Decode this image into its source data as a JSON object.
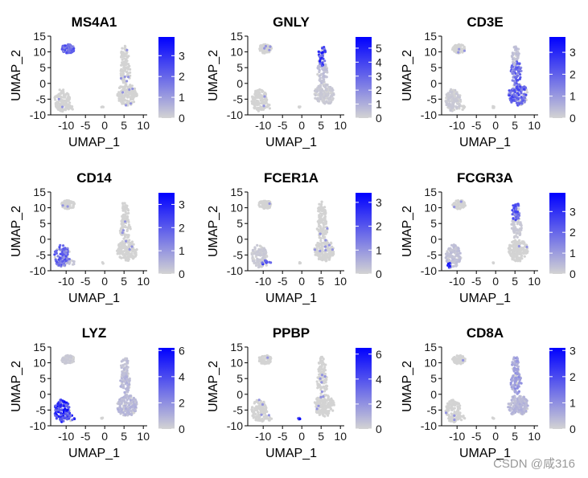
{
  "watermark": "CSDN @咸316",
  "colors": {
    "low": "#d3d3d3",
    "high": "#0000ff",
    "axis": "#000000"
  },
  "chart_data": [
    {
      "type": "scatter",
      "title": "MS4A1",
      "xlabel": "UMAP_1",
      "ylabel": "UMAP_2",
      "xlim": [
        -14,
        11
      ],
      "ylim": [
        -10,
        15
      ],
      "xticks": [
        -10,
        -5,
        0,
        5,
        10
      ],
      "yticks": [
        -10,
        -5,
        0,
        5,
        10,
        15
      ],
      "colorbar": {
        "max": 3.9,
        "ticks": [
          0,
          1,
          2,
          3
        ]
      },
      "clusters": [
        {
          "name": "b_cells",
          "cx": -9.5,
          "cy": 11.0,
          "rx": 1.7,
          "ry": 1.4,
          "n": 80,
          "level": 0.6
        },
        {
          "name": "mono",
          "cx": -11.0,
          "cy": -5.3,
          "rx": 2.0,
          "ry": 3.6,
          "n": 130,
          "level": 0.0
        },
        {
          "name": "t_main",
          "cx": 5.8,
          "cy": -3.6,
          "rx": 2.6,
          "ry": 3.4,
          "n": 160,
          "level": 0.0
        },
        {
          "name": "t_upper",
          "cx": 5.3,
          "cy": 3.6,
          "rx": 1.4,
          "ry": 3.6,
          "n": 70,
          "level": 0.0
        },
        {
          "name": "nk",
          "cx": 5.2,
          "cy": 8.8,
          "rx": 1.0,
          "ry": 3.2,
          "n": 45,
          "level": 0.0
        },
        {
          "name": "platelet",
          "cx": -0.6,
          "cy": -7.5,
          "rx": 0.3,
          "ry": 0.3,
          "n": 4,
          "level": 0.0
        },
        {
          "name": "dc",
          "cx": -9.0,
          "cy": -7.5,
          "rx": 1.3,
          "ry": 1.0,
          "n": 12,
          "level": 0.0
        }
      ]
    },
    {
      "type": "scatter",
      "title": "GNLY",
      "xlabel": "UMAP_1",
      "ylabel": "UMAP_2",
      "xlim": [
        -14,
        11
      ],
      "ylim": [
        -10,
        15
      ],
      "xticks": [
        -10,
        -5,
        0,
        5,
        10
      ],
      "yticks": [
        -10,
        -5,
        0,
        5,
        10,
        15
      ],
      "colorbar": {
        "max": 5.8,
        "ticks": [
          0,
          1,
          2,
          3,
          4,
          5
        ]
      },
      "clusters": [
        {
          "name": "b_cells",
          "cx": -9.5,
          "cy": 11.0,
          "rx": 1.7,
          "ry": 1.4,
          "n": 80,
          "level": 0.0
        },
        {
          "name": "mono",
          "cx": -11.0,
          "cy": -5.3,
          "rx": 2.0,
          "ry": 3.6,
          "n": 130,
          "level": 0.0
        },
        {
          "name": "t_main",
          "cx": 5.8,
          "cy": -3.6,
          "rx": 2.6,
          "ry": 3.4,
          "n": 160,
          "level": 0.05
        },
        {
          "name": "t_upper",
          "cx": 5.3,
          "cy": 3.6,
          "rx": 1.4,
          "ry": 3.6,
          "n": 70,
          "level": 0.1
        },
        {
          "name": "nk",
          "cx": 5.2,
          "cy": 8.8,
          "rx": 1.0,
          "ry": 3.2,
          "n": 45,
          "level": 0.75
        },
        {
          "name": "platelet",
          "cx": -0.6,
          "cy": -7.5,
          "rx": 0.3,
          "ry": 0.3,
          "n": 4,
          "level": 0.0
        },
        {
          "name": "dc",
          "cx": -9.0,
          "cy": -7.5,
          "rx": 1.3,
          "ry": 1.0,
          "n": 12,
          "level": 0.0
        }
      ]
    },
    {
      "type": "scatter",
      "title": "CD3E",
      "xlabel": "UMAP_1",
      "ylabel": "UMAP_2",
      "xlim": [
        -14,
        11
      ],
      "ylim": [
        -10,
        15
      ],
      "xticks": [
        -10,
        -5,
        0,
        5,
        10
      ],
      "yticks": [
        -10,
        -5,
        0,
        5,
        10,
        15
      ],
      "colorbar": {
        "max": 3.7,
        "ticks": [
          0,
          1,
          2,
          3
        ]
      },
      "clusters": [
        {
          "name": "b_cells",
          "cx": -9.5,
          "cy": 11.0,
          "rx": 1.7,
          "ry": 1.4,
          "n": 80,
          "level": 0.0
        },
        {
          "name": "mono",
          "cx": -11.0,
          "cy": -5.3,
          "rx": 2.0,
          "ry": 3.6,
          "n": 130,
          "level": 0.05
        },
        {
          "name": "t_main",
          "cx": 5.8,
          "cy": -3.6,
          "rx": 2.6,
          "ry": 3.4,
          "n": 160,
          "level": 0.6
        },
        {
          "name": "t_upper",
          "cx": 5.3,
          "cy": 3.6,
          "rx": 1.4,
          "ry": 3.6,
          "n": 70,
          "level": 0.55
        },
        {
          "name": "nk",
          "cx": 5.2,
          "cy": 8.8,
          "rx": 1.0,
          "ry": 3.2,
          "n": 45,
          "level": 0.1
        },
        {
          "name": "platelet",
          "cx": -0.6,
          "cy": -7.5,
          "rx": 0.3,
          "ry": 0.3,
          "n": 4,
          "level": 0.0
        },
        {
          "name": "dc",
          "cx": -9.0,
          "cy": -7.5,
          "rx": 1.3,
          "ry": 1.0,
          "n": 12,
          "level": 0.0
        }
      ]
    },
    {
      "type": "scatter",
      "title": "CD14",
      "xlabel": "UMAP_1",
      "ylabel": "UMAP_2",
      "xlim": [
        -14,
        11
      ],
      "ylim": [
        -10,
        15
      ],
      "xticks": [
        -10,
        -5,
        0,
        5,
        10
      ],
      "yticks": [
        -10,
        -5,
        0,
        5,
        10,
        15
      ],
      "colorbar": {
        "max": 3.5,
        "ticks": [
          0,
          1,
          2,
          3
        ]
      },
      "clusters": [
        {
          "name": "b_cells",
          "cx": -9.5,
          "cy": 11.0,
          "rx": 1.7,
          "ry": 1.4,
          "n": 80,
          "level": 0.0
        },
        {
          "name": "mono",
          "cx": -11.0,
          "cy": -5.3,
          "rx": 2.0,
          "ry": 3.6,
          "n": 130,
          "level": 0.55
        },
        {
          "name": "t_main",
          "cx": 5.8,
          "cy": -3.6,
          "rx": 2.6,
          "ry": 3.4,
          "n": 160,
          "level": 0.0
        },
        {
          "name": "t_upper",
          "cx": 5.3,
          "cy": 3.6,
          "rx": 1.4,
          "ry": 3.6,
          "n": 70,
          "level": 0.0
        },
        {
          "name": "nk",
          "cx": 5.2,
          "cy": 8.8,
          "rx": 1.0,
          "ry": 3.2,
          "n": 45,
          "level": 0.0
        },
        {
          "name": "platelet",
          "cx": -0.6,
          "cy": -7.5,
          "rx": 0.3,
          "ry": 0.3,
          "n": 4,
          "level": 0.0
        },
        {
          "name": "dc",
          "cx": -9.0,
          "cy": -7.5,
          "rx": 1.3,
          "ry": 1.0,
          "n": 12,
          "level": 0.1
        }
      ]
    },
    {
      "type": "scatter",
      "title": "FCER1A",
      "xlabel": "UMAP_1",
      "ylabel": "UMAP_2",
      "xlim": [
        -14,
        11
      ],
      "ylim": [
        -10,
        15
      ],
      "xticks": [
        -10,
        -5,
        0,
        5,
        10
      ],
      "yticks": [
        -10,
        -5,
        0,
        5,
        10,
        15
      ],
      "colorbar": {
        "max": 3.4,
        "ticks": [
          0,
          1,
          2,
          3
        ]
      },
      "clusters": [
        {
          "name": "b_cells",
          "cx": -9.5,
          "cy": 11.0,
          "rx": 1.7,
          "ry": 1.4,
          "n": 80,
          "level": 0.0
        },
        {
          "name": "mono",
          "cx": -11.0,
          "cy": -5.3,
          "rx": 2.0,
          "ry": 3.6,
          "n": 130,
          "level": 0.05
        },
        {
          "name": "t_main",
          "cx": 5.8,
          "cy": -3.6,
          "rx": 2.6,
          "ry": 3.4,
          "n": 160,
          "level": 0.0
        },
        {
          "name": "t_upper",
          "cx": 5.3,
          "cy": 3.6,
          "rx": 1.4,
          "ry": 3.6,
          "n": 70,
          "level": 0.0
        },
        {
          "name": "nk",
          "cx": 5.2,
          "cy": 8.8,
          "rx": 1.0,
          "ry": 3.2,
          "n": 45,
          "level": 0.0
        },
        {
          "name": "platelet",
          "cx": -0.6,
          "cy": -7.5,
          "rx": 0.3,
          "ry": 0.3,
          "n": 4,
          "level": 0.0
        },
        {
          "name": "dc",
          "cx": -9.0,
          "cy": -7.5,
          "rx": 1.3,
          "ry": 1.0,
          "n": 12,
          "level": 0.75
        }
      ]
    },
    {
      "type": "scatter",
      "title": "FCGR3A",
      "xlabel": "UMAP_1",
      "ylabel": "UMAP_2",
      "xlim": [
        -14,
        11
      ],
      "ylim": [
        -10,
        15
      ],
      "xticks": [
        -10,
        -5,
        0,
        5,
        10
      ],
      "yticks": [
        -10,
        -5,
        0,
        5,
        10,
        15
      ],
      "colorbar": {
        "max": 3.9,
        "ticks": [
          0,
          1,
          2,
          3
        ]
      },
      "clusters": [
        {
          "name": "b_cells",
          "cx": -9.5,
          "cy": 11.0,
          "rx": 1.7,
          "ry": 1.4,
          "n": 80,
          "level": 0.0
        },
        {
          "name": "mono",
          "cx": -11.0,
          "cy": -5.3,
          "rx": 2.0,
          "ry": 3.6,
          "n": 130,
          "level": 0.1
        },
        {
          "name": "t_main",
          "cx": 5.8,
          "cy": -3.6,
          "rx": 2.6,
          "ry": 3.4,
          "n": 160,
          "level": 0.0
        },
        {
          "name": "t_upper",
          "cx": 5.3,
          "cy": 3.6,
          "rx": 1.4,
          "ry": 3.6,
          "n": 70,
          "level": 0.05
        },
        {
          "name": "nk",
          "cx": 5.2,
          "cy": 8.8,
          "rx": 1.0,
          "ry": 3.2,
          "n": 45,
          "level": 0.6
        },
        {
          "name": "platelet",
          "cx": -0.6,
          "cy": -7.5,
          "rx": 0.3,
          "ry": 0.3,
          "n": 4,
          "level": 0.0
        },
        {
          "name": "dc",
          "cx": -12.0,
          "cy": -8.3,
          "rx": 0.6,
          "ry": 0.8,
          "n": 14,
          "level": 0.8
        }
      ]
    },
    {
      "type": "scatter",
      "title": "LYZ",
      "xlabel": "UMAP_1",
      "ylabel": "UMAP_2",
      "xlim": [
        -14,
        11
      ],
      "ylim": [
        -10,
        15
      ],
      "xticks": [
        -10,
        -5,
        0,
        5,
        10
      ],
      "yticks": [
        -10,
        -5,
        0,
        5,
        10,
        15
      ],
      "colorbar": {
        "max": 6.2,
        "ticks": [
          0,
          2,
          4,
          6
        ]
      },
      "clusters": [
        {
          "name": "b_cells",
          "cx": -9.5,
          "cy": 11.0,
          "rx": 1.7,
          "ry": 1.4,
          "n": 80,
          "level": 0.05
        },
        {
          "name": "mono",
          "cx": -11.0,
          "cy": -5.3,
          "rx": 2.0,
          "ry": 3.6,
          "n": 130,
          "level": 0.85
        },
        {
          "name": "t_main",
          "cx": 5.8,
          "cy": -3.6,
          "rx": 2.6,
          "ry": 3.4,
          "n": 160,
          "level": 0.15
        },
        {
          "name": "t_upper",
          "cx": 5.3,
          "cy": 3.6,
          "rx": 1.4,
          "ry": 3.6,
          "n": 70,
          "level": 0.15
        },
        {
          "name": "nk",
          "cx": 5.2,
          "cy": 8.8,
          "rx": 1.0,
          "ry": 3.2,
          "n": 45,
          "level": 0.1
        },
        {
          "name": "platelet",
          "cx": -0.6,
          "cy": -7.5,
          "rx": 0.3,
          "ry": 0.3,
          "n": 4,
          "level": 0.0
        },
        {
          "name": "dc",
          "cx": -9.0,
          "cy": -7.5,
          "rx": 1.3,
          "ry": 1.0,
          "n": 12,
          "level": 0.85
        }
      ]
    },
    {
      "type": "scatter",
      "title": "PPBP",
      "xlabel": "UMAP_1",
      "ylabel": "UMAP_2",
      "xlim": [
        -14,
        11
      ],
      "ylim": [
        -10,
        15
      ],
      "xticks": [
        -10,
        -5,
        0,
        5,
        10
      ],
      "yticks": [
        -10,
        -5,
        0,
        5,
        10,
        15
      ],
      "colorbar": {
        "max": 6.5,
        "ticks": [
          0,
          2,
          4,
          6
        ]
      },
      "clusters": [
        {
          "name": "b_cells",
          "cx": -9.5,
          "cy": 11.0,
          "rx": 1.7,
          "ry": 1.4,
          "n": 80,
          "level": 0.0
        },
        {
          "name": "mono",
          "cx": -11.0,
          "cy": -5.3,
          "rx": 2.0,
          "ry": 3.6,
          "n": 130,
          "level": 0.0
        },
        {
          "name": "t_main",
          "cx": 5.8,
          "cy": -3.6,
          "rx": 2.6,
          "ry": 3.4,
          "n": 160,
          "level": 0.0
        },
        {
          "name": "t_upper",
          "cx": 5.3,
          "cy": 3.6,
          "rx": 1.4,
          "ry": 3.6,
          "n": 70,
          "level": 0.0
        },
        {
          "name": "nk",
          "cx": 5.2,
          "cy": 8.8,
          "rx": 1.0,
          "ry": 3.2,
          "n": 45,
          "level": 0.0
        },
        {
          "name": "platelet",
          "cx": -0.6,
          "cy": -7.8,
          "rx": 0.4,
          "ry": 0.3,
          "n": 6,
          "level": 0.9
        },
        {
          "name": "dc",
          "cx": -9.0,
          "cy": -7.5,
          "rx": 1.3,
          "ry": 1.0,
          "n": 12,
          "level": 0.0
        }
      ]
    },
    {
      "type": "scatter",
      "title": "CD8A",
      "xlabel": "UMAP_1",
      "ylabel": "UMAP_2",
      "xlim": [
        -14,
        11
      ],
      "ylim": [
        -10,
        15
      ],
      "xticks": [
        -10,
        -5,
        0,
        5,
        10
      ],
      "yticks": [
        -10,
        -5,
        0,
        5,
        10,
        15
      ],
      "colorbar": {
        "max": 3.1,
        "ticks": [
          0,
          1,
          2,
          3
        ]
      },
      "clusters": [
        {
          "name": "b_cells",
          "cx": -9.5,
          "cy": 11.0,
          "rx": 1.7,
          "ry": 1.4,
          "n": 80,
          "level": 0.0
        },
        {
          "name": "mono",
          "cx": -11.0,
          "cy": -5.3,
          "rx": 2.0,
          "ry": 3.6,
          "n": 130,
          "level": 0.0
        },
        {
          "name": "t_main",
          "cx": 5.8,
          "cy": -3.6,
          "rx": 2.6,
          "ry": 3.4,
          "n": 160,
          "level": 0.15
        },
        {
          "name": "t_upper",
          "cx": 5.3,
          "cy": 3.6,
          "rx": 1.4,
          "ry": 3.6,
          "n": 70,
          "level": 0.3
        },
        {
          "name": "nk",
          "cx": 5.2,
          "cy": 8.8,
          "rx": 1.0,
          "ry": 3.2,
          "n": 45,
          "level": 0.25
        },
        {
          "name": "platelet",
          "cx": -0.6,
          "cy": -7.5,
          "rx": 0.3,
          "ry": 0.3,
          "n": 4,
          "level": 0.0
        },
        {
          "name": "dc",
          "cx": -9.0,
          "cy": -7.5,
          "rx": 1.3,
          "ry": 1.0,
          "n": 12,
          "level": 0.0
        }
      ]
    }
  ]
}
